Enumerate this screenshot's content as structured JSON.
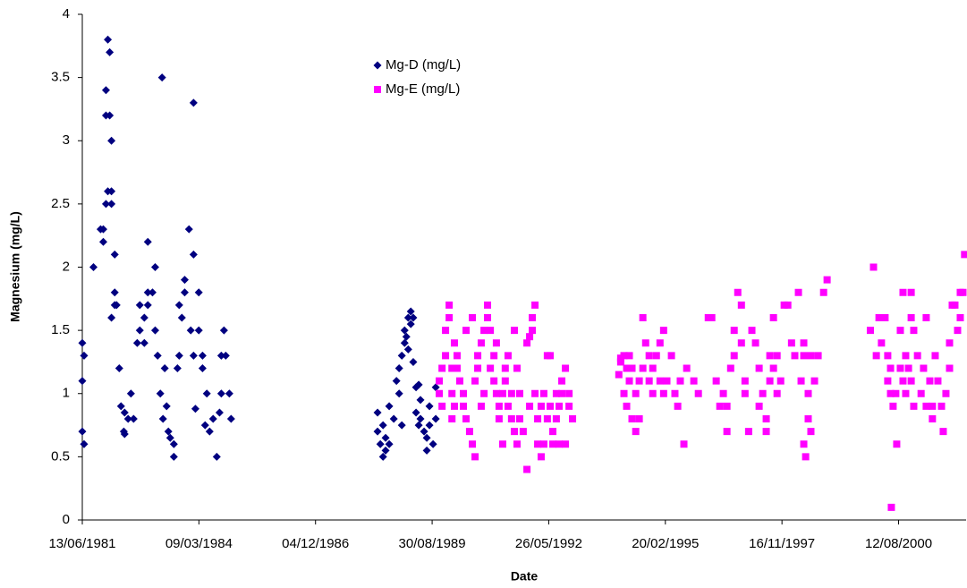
{
  "chart_data": {
    "type": "scatter",
    "x_label": "Date",
    "y_label": "Magnesium (mg/L)",
    "xlim": [
      "1981-06-13",
      "2002-03-14"
    ],
    "xticks": [
      {
        "value": "1981-06-13",
        "label": "13/06/1981"
      },
      {
        "value": "1984-03-09",
        "label": "09/03/1984"
      },
      {
        "value": "1986-12-04",
        "label": "04/12/1986"
      },
      {
        "value": "1989-08-30",
        "label": "30/08/1989"
      },
      {
        "value": "1992-05-26",
        "label": "26/05/1992"
      },
      {
        "value": "1995-02-20",
        "label": "20/02/1995"
      },
      {
        "value": "1997-11-16",
        "label": "16/11/1997"
      },
      {
        "value": "2000-08-12",
        "label": "12/08/2000"
      }
    ],
    "ylim": [
      0,
      4
    ],
    "yticks": [
      0,
      0.5,
      1,
      1.5,
      2,
      2.5,
      3,
      3.5,
      4
    ],
    "grid": false,
    "legend": "top-center",
    "series": [
      {
        "name": "Mg-D (mg/L)",
        "color": "#000080",
        "marker": "diamond",
        "x": [
          "1981-06-13",
          "1981-06-13",
          "1981-06-13",
          "1981-06-28",
          "1981-06-28",
          "1981-09-17",
          "1981-11-17",
          "1981-12-10",
          "1981-12-10",
          "1982-01-02",
          "1982-01-02",
          "1982-01-02",
          "1982-01-18",
          "1982-01-18",
          "1982-02-03",
          "1982-02-03",
          "1982-02-18",
          "1982-02-18",
          "1982-02-18",
          "1982-02-18",
          "1982-03-18",
          "1982-03-18",
          "1982-03-18",
          "1982-04-03",
          "1982-04-26",
          "1982-05-11",
          "1982-06-04",
          "1982-06-11",
          "1982-06-11",
          "1982-07-11",
          "1982-08-04",
          "1982-08-27",
          "1982-09-27",
          "1982-10-19",
          "1982-10-19",
          "1982-11-27",
          "1982-11-27",
          "1982-12-27",
          "1982-12-27",
          "1982-12-27",
          "1983-02-05",
          "1983-02-28",
          "1983-02-28",
          "1983-03-21",
          "1983-04-13",
          "1983-04-28",
          "1983-05-06",
          "1983-05-21",
          "1983-06-06",
          "1983-06-21",
          "1983-07-07",
          "1983-08-07",
          "1983-08-07",
          "1983-09-07",
          "1983-09-22",
          "1983-09-22",
          "1983-10-15",
          "1983-11-08",
          "1983-11-08",
          "1983-12-15",
          "1983-12-30",
          "1984-01-23",
          "1984-01-23",
          "1984-01-23",
          "1984-02-08",
          "1984-03-08",
          "1984-03-08",
          "1984-04-09",
          "1984-04-09",
          "1984-05-01",
          "1984-05-16",
          "1984-06-09",
          "1984-07-09",
          "1984-08-09",
          "1984-09-02",
          "1984-09-17",
          "1984-09-17",
          "1984-10-10",
          "1984-10-25",
          "1984-11-25",
          "1984-12-10",
          "1988-05-19",
          "1988-05-19",
          "1988-06-12",
          "1988-07-05",
          "1988-07-05",
          "1988-07-27",
          "1988-07-27",
          "1988-08-27",
          "1988-08-27",
          "1988-10-05",
          "1988-10-28",
          "1988-11-20",
          "1988-11-20",
          "1988-12-13",
          "1988-12-13",
          "1989-01-06",
          "1989-01-06",
          "1989-01-21",
          "1989-02-06",
          "1989-02-06",
          "1989-02-28",
          "1989-02-28",
          "1989-03-21",
          "1989-03-21",
          "1989-04-14",
          "1989-04-14",
          "1989-05-07",
          "1989-05-07",
          "1989-05-22",
          "1989-05-22",
          "1989-06-22",
          "1989-07-15",
          "1989-07-15",
          "1989-08-07",
          "1989-08-07",
          "1989-09-07",
          "1989-09-30",
          "1989-09-30"
        ],
        "values": [
          0.7,
          1.1,
          1.4,
          0.6,
          1.3,
          2.0,
          2.3,
          2.2,
          2.3,
          2.5,
          3.2,
          3.4,
          2.6,
          3.8,
          3.7,
          3.2,
          2.6,
          3.0,
          1.6,
          2.5,
          2.1,
          1.7,
          1.8,
          1.7,
          1.2,
          0.9,
          0.7,
          0.85,
          0.68,
          0.8,
          1.0,
          0.8,
          1.4,
          1.7,
          1.5,
          1.4,
          1.6,
          2.2,
          1.7,
          1.8,
          1.8,
          2.0,
          1.5,
          1.3,
          1.0,
          3.5,
          0.8,
          1.2,
          0.9,
          0.7,
          0.65,
          0.5,
          0.6,
          1.2,
          1.3,
          1.7,
          1.6,
          1.8,
          1.9,
          2.3,
          1.5,
          3.3,
          2.1,
          1.3,
          0.88,
          1.8,
          1.5,
          1.3,
          1.2,
          0.75,
          1.0,
          0.7,
          0.8,
          0.5,
          0.85,
          1.0,
          1.3,
          1.5,
          1.3,
          1.0,
          0.8,
          0.7,
          0.85,
          0.6,
          0.75,
          0.5,
          0.55,
          0.65,
          0.6,
          0.9,
          0.8,
          1.1,
          1.2,
          1.0,
          1.3,
          0.75,
          1.5,
          1.4,
          1.45,
          1.6,
          1.35,
          1.65,
          1.55,
          1.6,
          1.25,
          1.05,
          0.85,
          1.07,
          0.75,
          0.95,
          0.8,
          0.7,
          0.65,
          0.55,
          0.75,
          0.9,
          0.6,
          0.8,
          1.05
        ]
      },
      {
        "name": "Mg-E (mg/L)",
        "color": "#ff00ff",
        "marker": "square",
        "x": [
          "1989-10-30",
          "1989-10-30",
          "1989-11-23",
          "1989-11-23",
          "1989-12-23",
          "1989-12-23",
          "1990-01-23",
          "1990-01-23",
          "1990-02-16",
          "1990-02-16",
          "1990-02-16",
          "1990-03-09",
          "1990-03-09",
          "1990-04-01",
          "1990-04-01",
          "1990-04-24",
          "1990-05-25",
          "1990-05-25",
          "1990-06-17",
          "1990-06-17",
          "1990-07-17",
          "1990-08-10",
          "1990-08-10",
          "1990-09-02",
          "1990-09-02",
          "1990-09-25",
          "1990-09-25",
          "1990-10-25",
          "1990-10-25",
          "1990-11-18",
          "1990-11-18",
          "1990-12-18",
          "1990-12-18",
          "1991-01-11",
          "1991-01-11",
          "1991-02-11",
          "1991-02-11",
          "1991-03-04",
          "1991-03-04",
          "1991-03-27",
          "1991-03-27",
          "1991-04-27",
          "1991-04-27",
          "1991-05-19",
          "1991-05-19",
          "1991-06-12",
          "1991-06-12",
          "1991-07-12",
          "1991-07-12",
          "1991-08-05",
          "1991-08-05",
          "1991-08-28",
          "1991-08-28",
          "1991-09-20",
          "1991-09-20",
          "1991-10-20",
          "1991-11-21",
          "1991-11-21",
          "1991-12-14",
          "1991-12-14",
          "1992-01-06",
          "1992-01-06",
          "1992-01-29",
          "1992-01-29",
          "1992-02-21",
          "1992-02-21",
          "1992-03-22",
          "1992-03-22",
          "1992-04-14",
          "1992-04-14",
          "1992-05-14",
          "1992-05-14",
          "1992-06-07",
          "1992-06-07",
          "1992-06-30",
          "1992-06-30",
          "1992-07-30",
          "1992-07-30",
          "1992-08-23",
          "1992-08-23",
          "1992-09-15",
          "1992-09-15",
          "1992-10-16",
          "1992-10-16",
          "1992-11-16",
          "1992-11-16",
          "1992-12-16",
          "1994-01-17",
          "1994-02-02",
          "1994-02-02",
          "1994-03-02",
          "1994-03-02",
          "1994-03-25",
          "1994-03-25",
          "1994-04-17",
          "1994-04-17",
          "1994-05-10",
          "1994-05-10",
          "1994-06-11",
          "1994-06-11",
          "1994-07-11",
          "1994-07-11",
          "1994-08-11",
          "1994-08-11",
          "1994-09-04",
          "1994-10-04",
          "1994-10-04",
          "1994-11-04",
          "1994-11-04",
          "1994-12-05",
          "1995-01-05",
          "1995-01-05",
          "1995-02-05",
          "1995-02-05",
          "1995-03-05",
          "1995-04-13",
          "1995-05-13",
          "1995-06-06",
          "1995-06-28",
          "1995-07-29",
          "1995-08-22",
          "1995-10-22",
          "1995-11-30",
          "1996-02-23",
          "1996-03-24",
          "1996-05-01",
          "1996-06-01",
          "1996-07-01",
          "1996-08-01",
          "1996-08-01",
          "1996-09-02",
          "1996-10-02",
          "1996-10-02",
          "1996-11-02",
          "1996-12-03",
          "1996-12-03",
          "1997-01-03",
          "1997-01-03",
          "1997-02-03",
          "1997-03-03",
          "1997-04-03",
          "1997-05-04",
          "1997-05-04",
          "1997-06-04",
          "1997-07-04",
          "1997-07-04",
          "1997-08-04",
          "1997-08-04",
          "1997-09-04",
          "1997-09-04",
          "1997-10-05",
          "1997-10-05",
          "1997-11-05",
          "1997-12-05",
          "1998-01-05",
          "1998-02-06",
          "1998-03-06",
          "1998-04-06",
          "1998-04-29",
          "1998-05-22",
          "1998-05-22",
          "1998-05-22",
          "1998-06-07",
          "1998-06-29",
          "1998-06-29",
          "1998-07-22",
          "1998-07-22",
          "1998-08-22",
          "1998-09-22",
          "1998-11-08",
          "1998-12-08",
          "1999-12-14",
          "2000-01-10",
          "2000-02-03",
          "2000-02-26",
          "2000-03-18",
          "2000-04-18",
          "2000-05-11",
          "2000-05-11",
          "2000-06-04",
          "2000-06-04",
          "2000-06-11",
          "2000-06-26",
          "2000-07-19",
          "2000-07-27",
          "2000-08-27",
          "2000-08-27",
          "2000-09-19",
          "2000-09-19",
          "2000-10-12",
          "2000-10-12",
          "2000-11-05",
          "2000-11-28",
          "2000-11-28",
          "2000-11-28",
          "2000-12-20",
          "2000-12-20",
          "2001-01-21",
          "2001-02-21",
          "2001-03-14",
          "2001-04-06",
          "2001-04-06",
          "2001-05-07",
          "2001-05-29",
          "2001-05-29",
          "2001-06-22",
          "2001-07-15",
          "2001-08-15",
          "2001-08-30",
          "2001-09-22",
          "2001-10-23",
          "2001-10-23",
          "2001-11-15",
          "2001-12-08",
          "2001-12-31",
          "2002-01-23",
          "2002-01-23",
          "2002-02-15",
          "2002-03-01"
        ],
        "values": [
          1.0,
          1.1,
          1.2,
          0.9,
          1.3,
          1.5,
          1.7,
          1.6,
          0.8,
          1.2,
          1.0,
          1.4,
          0.9,
          1.3,
          1.2,
          1.1,
          1.0,
          0.9,
          0.8,
          1.5,
          0.7,
          0.6,
          1.6,
          0.5,
          1.1,
          1.2,
          1.3,
          1.4,
          0.9,
          1.5,
          1.0,
          1.6,
          1.7,
          1.5,
          1.2,
          1.3,
          1.1,
          1.4,
          1.0,
          0.9,
          0.8,
          1.0,
          0.6,
          1.1,
          1.2,
          1.3,
          0.9,
          0.8,
          1.0,
          0.7,
          1.5,
          1.2,
          0.6,
          0.8,
          1.0,
          0.7,
          0.4,
          1.4,
          1.45,
          0.9,
          1.5,
          1.6,
          1.7,
          1.0,
          0.8,
          0.6,
          0.9,
          0.5,
          0.6,
          1.0,
          1.3,
          0.8,
          0.9,
          1.3,
          0.7,
          0.6,
          1.0,
          0.8,
          0.6,
          0.9,
          1.0,
          1.1,
          0.6,
          1.2,
          0.9,
          1.0,
          0.8,
          1.15,
          1.25,
          1.28,
          1.3,
          1.0,
          1.2,
          0.9,
          1.1,
          1.3,
          0.8,
          1.2,
          1.0,
          0.7,
          1.1,
          0.8,
          1.6,
          1.2,
          1.4,
          1.1,
          1.3,
          1.0,
          1.2,
          1.3,
          1.4,
          1.1,
          1.5,
          1.0,
          1.1,
          1.3,
          1.0,
          0.9,
          1.1,
          0.6,
          1.2,
          1.1,
          1.0,
          1.6,
          1.6,
          1.1,
          0.9,
          1.0,
          0.7,
          0.9,
          1.2,
          1.5,
          1.3,
          1.8,
          1.4,
          1.7,
          1.1,
          1.0,
          0.7,
          1.5,
          1.4,
          1.2,
          0.9,
          1.0,
          0.8,
          0.7,
          1.1,
          1.3,
          1.6,
          1.2,
          1.0,
          1.3,
          1.1,
          1.7,
          1.7,
          1.4,
          1.3,
          1.8,
          1.1,
          1.4,
          1.3,
          0.6,
          0.5,
          1.0,
          0.8,
          0.7,
          1.3,
          1.1,
          1.3,
          1.8,
          1.9,
          1.5,
          2.0,
          1.3,
          1.6,
          1.4,
          1.6,
          1.3,
          1.1,
          1.2,
          1.0,
          0.1,
          0.9,
          1.0,
          0.6,
          1.5,
          1.2,
          1.1,
          1.8,
          1.3,
          1.0,
          1.2,
          1.8,
          1.6,
          1.1,
          1.5,
          0.9,
          1.3,
          1.0,
          1.2,
          1.6,
          0.9,
          1.1,
          0.8,
          0.9,
          1.3,
          1.1,
          0.9,
          0.7,
          1.0,
          1.4,
          1.2,
          1.7,
          1.7,
          1.5,
          1.8,
          1.6,
          1.8,
          2.1
        ]
      }
    ]
  }
}
